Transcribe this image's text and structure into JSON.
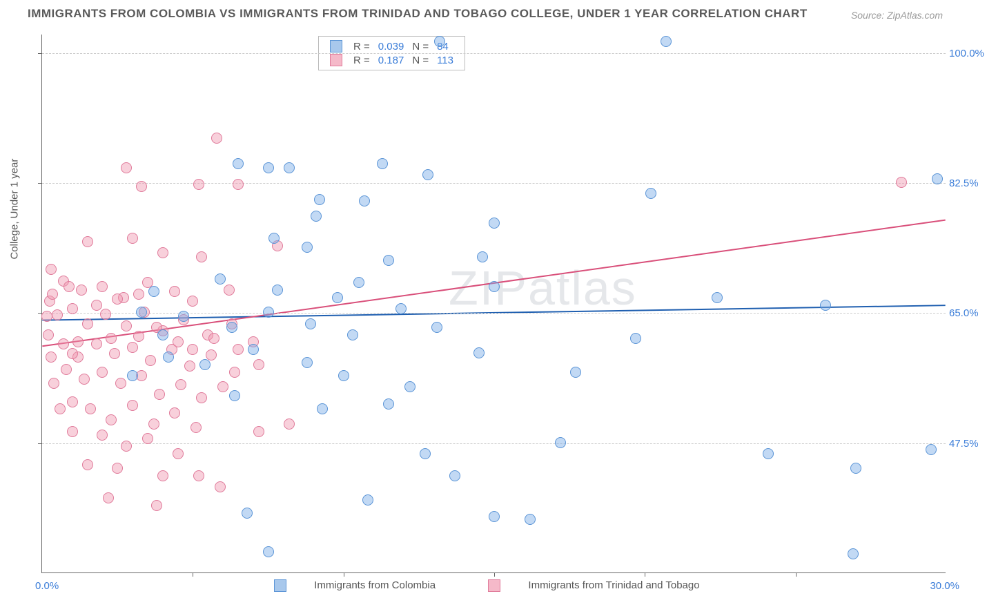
{
  "title": "IMMIGRANTS FROM COLOMBIA VS IMMIGRANTS FROM TRINIDAD AND TOBAGO COLLEGE, UNDER 1 YEAR CORRELATION CHART",
  "source": "Source: ZipAtlas.com",
  "watermark": "ZIPatlas",
  "y_axis_label": "College, Under 1 year",
  "x_axis": {
    "min_label": "0.0%",
    "max_label": "30.0%",
    "min": 0,
    "max": 30,
    "tick_step": 5
  },
  "y_axis": {
    "min": 30,
    "max": 102.5,
    "gridlines": [
      47.5,
      65.0,
      82.5,
      100.0
    ],
    "grid_labels": [
      "47.5%",
      "65.0%",
      "82.5%",
      "100.0%"
    ]
  },
  "series": {
    "colombia": {
      "label": "Immigrants from Colombia",
      "color_fill": "rgba(120,170,230,0.45)",
      "color_stroke": "#5a94d6",
      "swatch_fill": "#a8c8ec",
      "swatch_border": "#5a94d6",
      "R": "0.039",
      "N": "84",
      "trend": {
        "x1": 0,
        "y1": 64.0,
        "x2": 30,
        "y2": 66.0,
        "color": "#1f5fb0",
        "width": 2
      },
      "marker_radius": 8,
      "points": [
        [
          13.2,
          101.5
        ],
        [
          20.7,
          101.5
        ],
        [
          29.7,
          83.0
        ],
        [
          20.2,
          81.0
        ],
        [
          6.5,
          85.0
        ],
        [
          7.5,
          84.5
        ],
        [
          8.2,
          84.5
        ],
        [
          11.3,
          85.0
        ],
        [
          12.8,
          83.5
        ],
        [
          9.2,
          80.2
        ],
        [
          9.1,
          78.0
        ],
        [
          10.7,
          80.0
        ],
        [
          15.0,
          77.0
        ],
        [
          7.7,
          75.0
        ],
        [
          8.8,
          73.8
        ],
        [
          11.5,
          72.0
        ],
        [
          14.6,
          72.5
        ],
        [
          5.9,
          69.5
        ],
        [
          7.8,
          68.0
        ],
        [
          10.5,
          69.0
        ],
        [
          9.8,
          67.0
        ],
        [
          15.0,
          68.5
        ],
        [
          22.4,
          67.0
        ],
        [
          26.0,
          66.0
        ],
        [
          4.7,
          64.5
        ],
        [
          6.3,
          63.0
        ],
        [
          7.5,
          65.0
        ],
        [
          8.9,
          63.5
        ],
        [
          10.3,
          62.0
        ],
        [
          11.9,
          65.5
        ],
        [
          13.1,
          63.0
        ],
        [
          14.5,
          59.6
        ],
        [
          19.7,
          61.5
        ],
        [
          5.4,
          58.0
        ],
        [
          7.0,
          60.0
        ],
        [
          8.8,
          58.3
        ],
        [
          10.0,
          56.5
        ],
        [
          12.2,
          55.0
        ],
        [
          11.5,
          52.7
        ],
        [
          17.7,
          57.0
        ],
        [
          6.4,
          53.8
        ],
        [
          9.3,
          52.0
        ],
        [
          12.7,
          46.0
        ],
        [
          13.7,
          43.0
        ],
        [
          17.2,
          47.5
        ],
        [
          6.8,
          38.0
        ],
        [
          15.0,
          37.5
        ],
        [
          7.5,
          32.8
        ],
        [
          26.9,
          32.5
        ],
        [
          24.1,
          46.0
        ],
        [
          27.0,
          44.0
        ],
        [
          29.5,
          46.5
        ],
        [
          16.2,
          37.2
        ],
        [
          10.8,
          39.8
        ],
        [
          3.7,
          67.8
        ],
        [
          3.3,
          65.0
        ],
        [
          4.0,
          62.0
        ],
        [
          4.2,
          59.0
        ],
        [
          3.0,
          56.5
        ]
      ]
    },
    "trinidad": {
      "label": "Immigrants from Trinidad and Tobago",
      "color_fill": "rgba(240,150,175,0.45)",
      "color_stroke": "#e07a9a",
      "swatch_fill": "#f5b9c9",
      "swatch_border": "#e07a9a",
      "R": "0.187",
      "N": "113",
      "trend": {
        "x1": 0,
        "y1": 60.5,
        "x2": 30,
        "y2": 77.5,
        "color": "#d94f7a",
        "width": 2
      },
      "marker_radius": 8,
      "points": [
        [
          28.5,
          82.5
        ],
        [
          5.8,
          88.5
        ],
        [
          2.8,
          84.5
        ],
        [
          3.3,
          82.0
        ],
        [
          5.2,
          82.2
        ],
        [
          6.5,
          82.2
        ],
        [
          1.5,
          74.5
        ],
        [
          3.0,
          75.0
        ],
        [
          4.0,
          73.0
        ],
        [
          5.3,
          72.5
        ],
        [
          7.8,
          74.0
        ],
        [
          0.3,
          70.8
        ],
        [
          0.7,
          69.2
        ],
        [
          1.3,
          68.0
        ],
        [
          2.0,
          68.5
        ],
        [
          2.7,
          67.0
        ],
        [
          3.5,
          69.0
        ],
        [
          4.4,
          67.8
        ],
        [
          5.0,
          66.5
        ],
        [
          6.2,
          68.0
        ],
        [
          0.5,
          64.7
        ],
        [
          1.0,
          65.5
        ],
        [
          1.5,
          63.5
        ],
        [
          2.1,
          64.8
        ],
        [
          2.8,
          63.2
        ],
        [
          3.4,
          65.0
        ],
        [
          4.0,
          62.5
        ],
        [
          4.7,
          64.0
        ],
        [
          5.5,
          62.0
        ],
        [
          6.3,
          63.5
        ],
        [
          7.0,
          61.0
        ],
        [
          2.5,
          66.8
        ],
        [
          1.2,
          61.0
        ],
        [
          1.8,
          60.8
        ],
        [
          2.4,
          59.5
        ],
        [
          3.0,
          60.3
        ],
        [
          3.6,
          58.5
        ],
        [
          4.3,
          60.0
        ],
        [
          4.9,
          57.8
        ],
        [
          5.6,
          59.3
        ],
        [
          6.4,
          57.0
        ],
        [
          7.2,
          58.0
        ],
        [
          0.8,
          57.3
        ],
        [
          1.4,
          56.0
        ],
        [
          2.0,
          57.0
        ],
        [
          2.6,
          55.5
        ],
        [
          3.3,
          56.5
        ],
        [
          3.9,
          54.0
        ],
        [
          4.6,
          55.3
        ],
        [
          5.3,
          53.5
        ],
        [
          6.0,
          55.0
        ],
        [
          1.0,
          53.0
        ],
        [
          1.6,
          52.0
        ],
        [
          2.3,
          50.5
        ],
        [
          3.0,
          52.5
        ],
        [
          3.7,
          50.0
        ],
        [
          4.4,
          51.5
        ],
        [
          5.1,
          49.5
        ],
        [
          2.0,
          48.5
        ],
        [
          2.8,
          47.0
        ],
        [
          3.5,
          48.0
        ],
        [
          4.5,
          46.0
        ],
        [
          7.2,
          49.0
        ],
        [
          8.2,
          50.0
        ],
        [
          2.5,
          44.0
        ],
        [
          4.0,
          43.0
        ],
        [
          5.2,
          43.0
        ],
        [
          5.9,
          41.5
        ],
        [
          2.2,
          40.0
        ],
        [
          3.8,
          39.0
        ],
        [
          1.5,
          44.5
        ],
        [
          1.0,
          49.0
        ],
        [
          0.6,
          52.0
        ],
        [
          0.4,
          55.5
        ],
        [
          0.3,
          59.0
        ],
        [
          0.2,
          62.0
        ],
        [
          0.15,
          64.5
        ],
        [
          0.25,
          66.5
        ],
        [
          0.35,
          67.5
        ],
        [
          0.9,
          68.5
        ],
        [
          1.8,
          66.0
        ],
        [
          2.3,
          61.5
        ],
        [
          3.2,
          61.8
        ],
        [
          3.8,
          63.0
        ],
        [
          4.5,
          61.0
        ],
        [
          5.0,
          60.0
        ],
        [
          5.7,
          61.5
        ],
        [
          6.5,
          60.0
        ],
        [
          1.2,
          59.0
        ],
        [
          1.0,
          59.5
        ],
        [
          0.7,
          60.8
        ],
        [
          3.2,
          67.5
        ]
      ]
    }
  },
  "legend_labels": {
    "R": "R =",
    "N": "N ="
  },
  "background_color": "#ffffff",
  "grid_color": "#cccccc",
  "axis_color": "#666666",
  "text_color": "#555555",
  "value_color": "#3b7dd8"
}
